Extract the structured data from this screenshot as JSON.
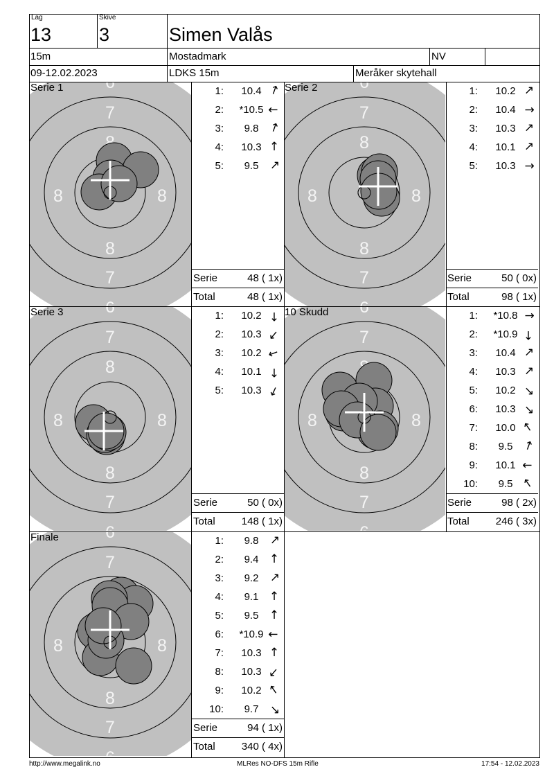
{
  "header": {
    "lag_label": "Lag",
    "lag_value": "13",
    "skive_label": "Skive",
    "skive_value": "3",
    "name": "Simen Valås",
    "class": "15m",
    "club": "Mostadmark",
    "region": "NV",
    "date": "09-12.02.2023",
    "event": "LDKS 15m",
    "venue": "Meråker skytehall"
  },
  "colors": {
    "target_gray": "#c0c0c0",
    "shot_fill": "#808080",
    "ring_number": "#f4f4f4"
  },
  "target_labels": {
    "ring6": "6",
    "ring7": "7",
    "ring8": "8"
  },
  "panels": [
    {
      "title": "Serie 1",
      "shots": [
        {
          "n": "1:",
          "score": "10.4",
          "dir": "up-right-steep"
        },
        {
          "n": "2:",
          "score": "*10.5",
          "dir": "left"
        },
        {
          "n": "3:",
          "score": "9.8",
          "dir": "up-right-steep"
        },
        {
          "n": "4:",
          "score": "10.3",
          "dir": "up"
        },
        {
          "n": "5:",
          "score": "9.5",
          "dir": "up-right"
        }
      ],
      "serie_label": "Serie",
      "serie": "48 ( 1x)",
      "total_label": "Total",
      "total": "48 ( 1x)"
    },
    {
      "title": "Serie 2",
      "shots": [
        {
          "n": "1:",
          "score": "10.2",
          "dir": "up-right"
        },
        {
          "n": "2:",
          "score": "10.4",
          "dir": "right"
        },
        {
          "n": "3:",
          "score": "10.3",
          "dir": "up-right"
        },
        {
          "n": "4:",
          "score": "10.1",
          "dir": "up-right"
        },
        {
          "n": "5:",
          "score": "10.3",
          "dir": "right"
        }
      ],
      "serie_label": "Serie",
      "serie": "50 ( 0x)",
      "total_label": "Total",
      "total": "98 ( 1x)"
    },
    {
      "title": "Serie 3",
      "shots": [
        {
          "n": "1:",
          "score": "10.2",
          "dir": "down"
        },
        {
          "n": "2:",
          "score": "10.3",
          "dir": "down-left"
        },
        {
          "n": "3:",
          "score": "10.2",
          "dir": "left-down"
        },
        {
          "n": "4:",
          "score": "10.1",
          "dir": "down"
        },
        {
          "n": "5:",
          "score": "10.3",
          "dir": "down-left-steep"
        }
      ],
      "serie_label": "Serie",
      "serie": "50 ( 0x)",
      "total_label": "Total",
      "total": "148 ( 1x)"
    },
    {
      "title": "10 Skudd",
      "shots": [
        {
          "n": "1:",
          "score": "*10.8",
          "dir": "right"
        },
        {
          "n": "2:",
          "score": "*10.9",
          "dir": "down"
        },
        {
          "n": "3:",
          "score": "10.4",
          "dir": "up-right"
        },
        {
          "n": "4:",
          "score": "10.3",
          "dir": "up-right"
        },
        {
          "n": "5:",
          "score": "10.2",
          "dir": "down-right"
        },
        {
          "n": "6:",
          "score": "10.3",
          "dir": "down-right"
        },
        {
          "n": "7:",
          "score": "10.0",
          "dir": "up-left"
        },
        {
          "n": "8:",
          "score": "9.5",
          "dir": "up-right-steep"
        },
        {
          "n": "9:",
          "score": "10.1",
          "dir": "left"
        },
        {
          "n": "10:",
          "score": "9.5",
          "dir": "up-left"
        }
      ],
      "serie_label": "Serie",
      "serie": "98 ( 2x)",
      "total_label": "Total",
      "total": "246 ( 3x)"
    },
    {
      "title": "Finale",
      "shots": [
        {
          "n": "1:",
          "score": "9.8",
          "dir": "up-right"
        },
        {
          "n": "2:",
          "score": "9.4",
          "dir": "up"
        },
        {
          "n": "3:",
          "score": "9.2",
          "dir": "up-right"
        },
        {
          "n": "4:",
          "score": "9.1",
          "dir": "up"
        },
        {
          "n": "5:",
          "score": "9.5",
          "dir": "up"
        },
        {
          "n": "6:",
          "score": "*10.9",
          "dir": "left"
        },
        {
          "n": "7:",
          "score": "10.3",
          "dir": "up"
        },
        {
          "n": "8:",
          "score": "10.3",
          "dir": "down-left"
        },
        {
          "n": "9:",
          "score": "10.2",
          "dir": "up-left"
        },
        {
          "n": "10:",
          "score": "9.7",
          "dir": "down-right"
        }
      ],
      "serie_label": "Serie",
      "serie": "94 ( 1x)",
      "total_label": "Total",
      "total": "340 ( 4x)"
    }
  ],
  "footer": {
    "url": "http://www.megalink.no",
    "software": "MLRes NO-DFS 15m Rifle",
    "timestamp": "17:54 - 12.02.2023"
  }
}
